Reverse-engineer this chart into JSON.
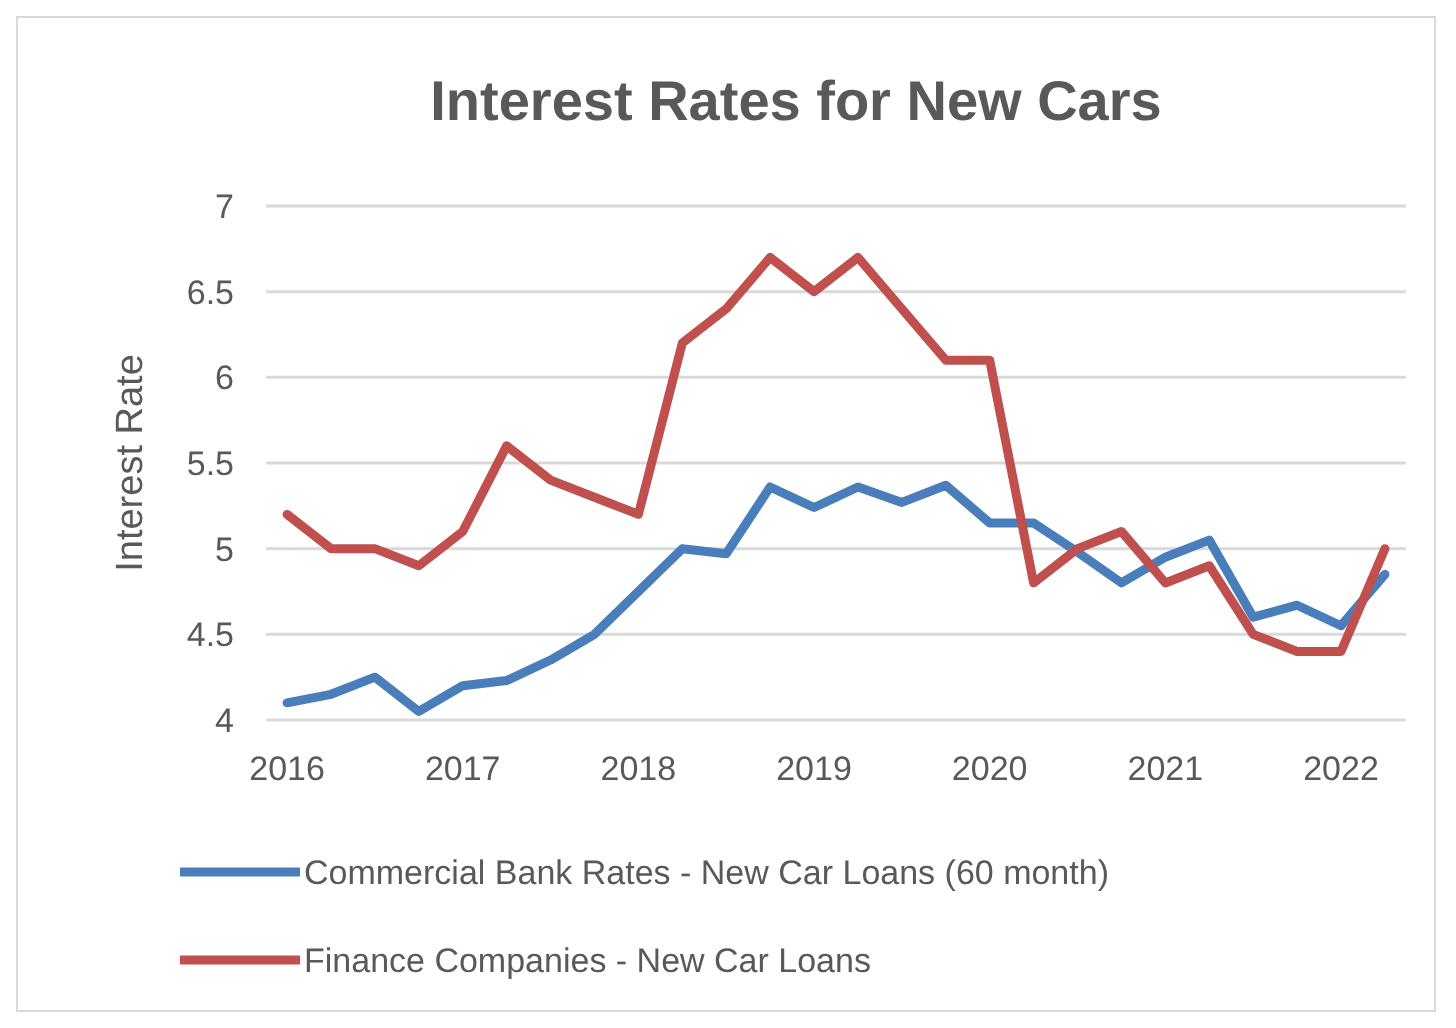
{
  "chart_data": {
    "type": "line",
    "title": "Interest Rates for New Cars",
    "ylabel": "Interest Rate",
    "x": [
      2016,
      2016.25,
      2016.5,
      2016.75,
      2017,
      2017.25,
      2017.5,
      2017.75,
      2018,
      2018.25,
      2018.5,
      2018.75,
      2019,
      2019.25,
      2019.5,
      2019.75,
      2020,
      2020.25,
      2020.5,
      2020.75,
      2021,
      2021.25,
      2021.5,
      2021.75,
      2022,
      2022.25
    ],
    "series": [
      {
        "name": "Commercial Bank Rates - New Car Loans (60 month)",
        "color": "#4a7ebb",
        "values": [
          4.1,
          4.15,
          4.25,
          4.05,
          4.2,
          4.23,
          4.35,
          4.5,
          4.75,
          5.0,
          4.97,
          5.36,
          5.24,
          5.36,
          5.27,
          5.37,
          5.15,
          5.15,
          4.98,
          4.8,
          4.95,
          5.05,
          4.6,
          4.67,
          4.55,
          4.85
        ]
      },
      {
        "name": "Finance Companies - New Car Loans",
        "color": "#c0504d",
        "values": [
          5.2,
          5.0,
          5.0,
          4.9,
          5.1,
          5.6,
          5.4,
          5.3,
          5.2,
          6.2,
          6.4,
          6.7,
          6.5,
          6.7,
          6.4,
          6.1,
          6.1,
          4.8,
          5.0,
          5.1,
          4.8,
          4.9,
          4.5,
          4.4,
          4.4,
          5.0
        ]
      }
    ],
    "xlim": [
      2015.88,
      2022.37
    ],
    "xticks": [
      2016,
      2017,
      2018,
      2019,
      2020,
      2021,
      2022
    ],
    "ylim": [
      4,
      7
    ],
    "yticks": [
      4,
      {
        "value": 4.5,
        "label": "4.5"
      },
      5,
      {
        "value": 5.5,
        "label": "5.5"
      },
      6,
      {
        "value": 6.5,
        "label": "6.5"
      },
      7
    ],
    "grid": "y",
    "legend": "bottom",
    "marker": "none",
    "line_style": "solid"
  }
}
